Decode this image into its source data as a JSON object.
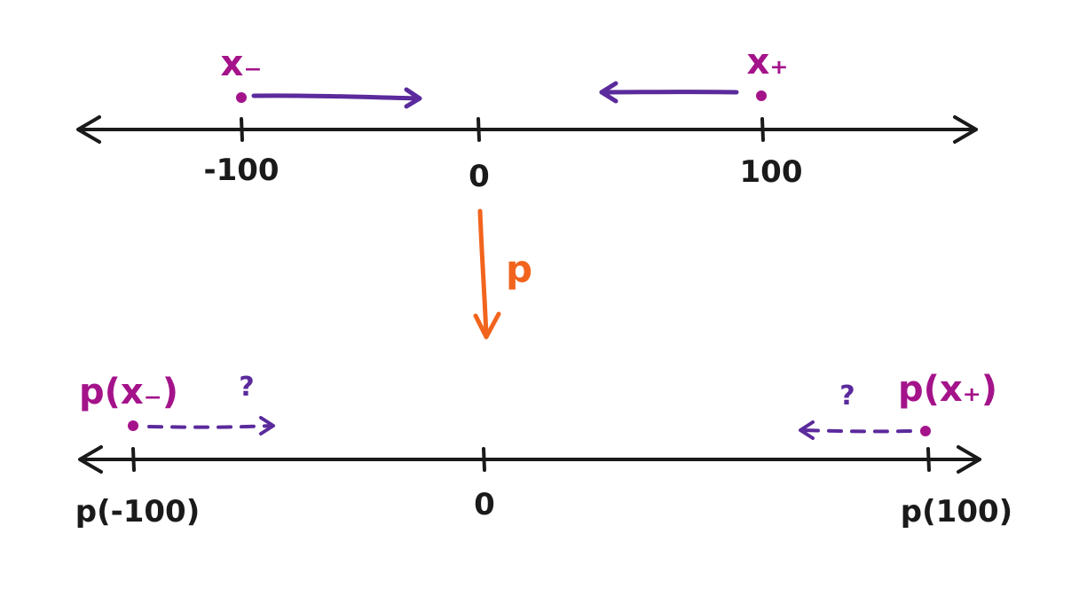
{
  "colors": {
    "ink": "#1a1a1a",
    "magenta": "#a4138a",
    "purple": "#5b2a9c",
    "orange": "#f2641d",
    "background": "#ffffff"
  },
  "top_line": {
    "tick_labels": [
      "-100",
      "0",
      "100"
    ],
    "points": {
      "x_minus": "x₋",
      "x_plus": "x₊"
    }
  },
  "mapping": {
    "label": "p"
  },
  "bottom_line": {
    "tick_labels": [
      "p(-100)",
      "0",
      "p(100)"
    ],
    "points": {
      "p_x_minus": "p(x₋)",
      "p_x_plus": "p(x₊)"
    },
    "question_marks": [
      "?",
      "?"
    ]
  }
}
